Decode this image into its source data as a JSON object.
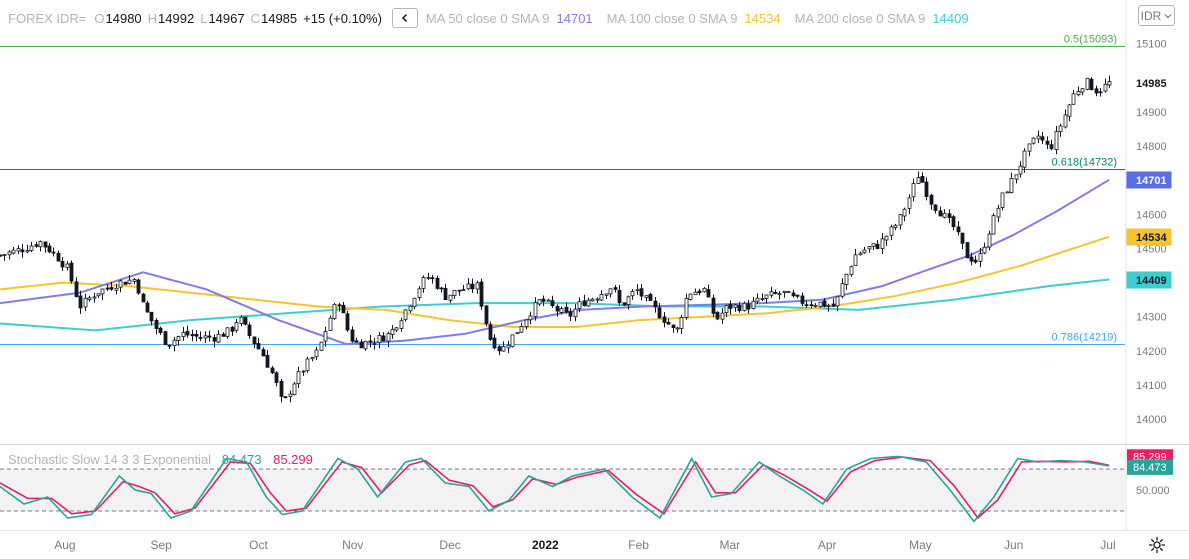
{
  "header": {
    "symbol": "FOREX IDR=",
    "ohlc": [
      {
        "label": "O",
        "value": "14980"
      },
      {
        "label": "H",
        "value": "14992"
      },
      {
        "label": "L",
        "value": "14967"
      },
      {
        "label": "C",
        "value": "14985"
      }
    ],
    "change": "+15 (+0.10%)",
    "collapse_icon": "chevron-left-icon",
    "moving_averages": [
      {
        "label": "MA 50 close 0 SMA 9",
        "value": "14701",
        "color": "#7e7ee8"
      },
      {
        "label": "MA 100 close 0 SMA 9",
        "value": "14534",
        "color": "#f5c530"
      },
      {
        "label": "MA 200 close 0 SMA 9",
        "value": "14409",
        "color": "#3dcfd0"
      }
    ]
  },
  "currency_button": {
    "label": "IDR",
    "icon": "chevron-down-icon"
  },
  "stochastic": {
    "name": "Stochastic Slow 14 3 3 Exponential",
    "k_value": "84.473",
    "d_value": "85.299",
    "k_color": "#26a69a",
    "d_color": "#e91e63",
    "scale_label": "50.000"
  },
  "settings_icon": "gear-icon",
  "chart_data": {
    "type": "candlestick",
    "price_axis": {
      "ticks": [
        14000,
        14100,
        14200,
        14300,
        14400,
        14500,
        14600,
        14700,
        14800,
        14900,
        15000,
        15100
      ],
      "range": [
        13930,
        15140
      ]
    },
    "time_axis": {
      "labels": [
        "Aug",
        "Sep",
        "Oct",
        "Nov",
        "Dec",
        "2022",
        "Feb",
        "Mar",
        "Apr",
        "May",
        "Jun",
        "Jul"
      ],
      "bold": [
        "2022"
      ]
    },
    "fib_levels": [
      {
        "label": "0.5(15093)",
        "value": 15093,
        "color": "#4caf50"
      },
      {
        "label": "0.618(14732)",
        "value": 14732,
        "color": "#00897b"
      },
      {
        "label": "0.786(14219)",
        "value": 14219,
        "color": "#42a5f5"
      }
    ],
    "price_badges": [
      {
        "label": "14985",
        "value": 14985,
        "bg": "#ffffff",
        "fg": "#131722"
      },
      {
        "label": "14701",
        "value": 14701,
        "bg": "#5b6ee1",
        "fg": "#ffffff"
      },
      {
        "label": "14534",
        "value": 14534,
        "bg": "#f5c530",
        "fg": "#131722"
      },
      {
        "label": "14409",
        "value": 14409,
        "bg": "#3dcfd0",
        "fg": "#131722"
      }
    ],
    "close_series": [
      {
        "t": 0.0,
        "v": 14480
      },
      {
        "t": 0.6,
        "v": 14500
      },
      {
        "t": 1.0,
        "v": 14520
      },
      {
        "t": 1.4,
        "v": 14480
      },
      {
        "t": 1.7,
        "v": 14440
      },
      {
        "t": 2.0,
        "v": 14330
      },
      {
        "t": 2.4,
        "v": 14370
      },
      {
        "t": 2.8,
        "v": 14390
      },
      {
        "t": 3.0,
        "v": 14400
      },
      {
        "t": 3.4,
        "v": 14410
      },
      {
        "t": 3.6,
        "v": 14330
      },
      {
        "t": 3.9,
        "v": 14270
      },
      {
        "t": 4.2,
        "v": 14220
      },
      {
        "t": 4.6,
        "v": 14250
      },
      {
        "t": 5.0,
        "v": 14240
      },
      {
        "t": 5.4,
        "v": 14240
      },
      {
        "t": 5.8,
        "v": 14260
      },
      {
        "t": 6.0,
        "v": 14300
      },
      {
        "t": 6.3,
        "v": 14240
      },
      {
        "t": 6.6,
        "v": 14190
      },
      {
        "t": 6.9,
        "v": 14120
      },
      {
        "t": 7.1,
        "v": 14040
      },
      {
        "t": 7.4,
        "v": 14110
      },
      {
        "t": 7.7,
        "v": 14160
      },
      {
        "t": 8.0,
        "v": 14200
      },
      {
        "t": 8.3,
        "v": 14300
      },
      {
        "t": 8.5,
        "v": 14350
      },
      {
        "t": 8.8,
        "v": 14240
      },
      {
        "t": 9.0,
        "v": 14220
      },
      {
        "t": 9.4,
        "v": 14230
      },
      {
        "t": 9.8,
        "v": 14250
      },
      {
        "t": 10.2,
        "v": 14320
      },
      {
        "t": 10.6,
        "v": 14400
      },
      {
        "t": 10.8,
        "v": 14420
      },
      {
        "t": 11.2,
        "v": 14360
      },
      {
        "t": 11.6,
        "v": 14380
      },
      {
        "t": 12.0,
        "v": 14390
      },
      {
        "t": 12.3,
        "v": 14240
      },
      {
        "t": 12.6,
        "v": 14200
      },
      {
        "t": 13.0,
        "v": 14260
      },
      {
        "t": 13.3,
        "v": 14310
      },
      {
        "t": 13.6,
        "v": 14350
      },
      {
        "t": 14.0,
        "v": 14320
      },
      {
        "t": 14.3,
        "v": 14300
      },
      {
        "t": 14.6,
        "v": 14340
      },
      {
        "t": 15.0,
        "v": 14360
      },
      {
        "t": 15.4,
        "v": 14390
      },
      {
        "t": 15.6,
        "v": 14330
      },
      {
        "t": 16.0,
        "v": 14380
      },
      {
        "t": 16.4,
        "v": 14330
      },
      {
        "t": 16.8,
        "v": 14280
      },
      {
        "t": 17.0,
        "v": 14250
      },
      {
        "t": 17.3,
        "v": 14370
      },
      {
        "t": 17.7,
        "v": 14380
      },
      {
        "t": 18.0,
        "v": 14290
      },
      {
        "t": 18.3,
        "v": 14330
      },
      {
        "t": 18.8,
        "v": 14330
      },
      {
        "t": 19.3,
        "v": 14360
      },
      {
        "t": 19.7,
        "v": 14370
      },
      {
        "t": 20.0,
        "v": 14350
      },
      {
        "t": 20.3,
        "v": 14340
      },
      {
        "t": 20.6,
        "v": 14340
      },
      {
        "t": 21.0,
        "v": 14330
      },
      {
        "t": 21.2,
        "v": 14400
      },
      {
        "t": 21.5,
        "v": 14480
      },
      {
        "t": 21.8,
        "v": 14500
      },
      {
        "t": 22.1,
        "v": 14510
      },
      {
        "t": 22.6,
        "v": 14580
      },
      {
        "t": 22.9,
        "v": 14660
      },
      {
        "t": 23.1,
        "v": 14720
      },
      {
        "t": 23.4,
        "v": 14640
      },
      {
        "t": 23.7,
        "v": 14600
      },
      {
        "t": 24.0,
        "v": 14560
      },
      {
        "t": 24.3,
        "v": 14480
      },
      {
        "t": 24.6,
        "v": 14460
      },
      {
        "t": 24.9,
        "v": 14560
      },
      {
        "t": 25.2,
        "v": 14650
      },
      {
        "t": 25.5,
        "v": 14710
      },
      {
        "t": 25.8,
        "v": 14780
      },
      {
        "t": 26.1,
        "v": 14830
      },
      {
        "t": 26.4,
        "v": 14790
      },
      {
        "t": 26.7,
        "v": 14870
      },
      {
        "t": 27.0,
        "v": 14950
      },
      {
        "t": 27.3,
        "v": 14990
      },
      {
        "t": 27.6,
        "v": 14960
      },
      {
        "t": 27.9,
        "v": 14985
      }
    ],
    "ma50_series": [
      {
        "t": 0.0,
        "v": 14340
      },
      {
        "t": 2.0,
        "v": 14370
      },
      {
        "t": 3.6,
        "v": 14430
      },
      {
        "t": 5.2,
        "v": 14380
      },
      {
        "t": 7.0,
        "v": 14290
      },
      {
        "t": 8.7,
        "v": 14220
      },
      {
        "t": 10.2,
        "v": 14230
      },
      {
        "t": 11.7,
        "v": 14250
      },
      {
        "t": 13.2,
        "v": 14290
      },
      {
        "t": 14.6,
        "v": 14320
      },
      {
        "t": 16.2,
        "v": 14330
      },
      {
        "t": 17.8,
        "v": 14335
      },
      {
        "t": 19.2,
        "v": 14340
      },
      {
        "t": 20.7,
        "v": 14350
      },
      {
        "t": 22.2,
        "v": 14390
      },
      {
        "t": 23.4,
        "v": 14440
      },
      {
        "t": 24.4,
        "v": 14480
      },
      {
        "t": 25.5,
        "v": 14540
      },
      {
        "t": 26.6,
        "v": 14610
      },
      {
        "t": 27.9,
        "v": 14701
      }
    ],
    "ma100_series": [
      {
        "t": 0.0,
        "v": 14380
      },
      {
        "t": 1.6,
        "v": 14400
      },
      {
        "t": 3.2,
        "v": 14390
      },
      {
        "t": 4.8,
        "v": 14370
      },
      {
        "t": 6.4,
        "v": 14350
      },
      {
        "t": 8.0,
        "v": 14330
      },
      {
        "t": 9.7,
        "v": 14320
      },
      {
        "t": 11.3,
        "v": 14290
      },
      {
        "t": 12.9,
        "v": 14270
      },
      {
        "t": 14.5,
        "v": 14270
      },
      {
        "t": 16.1,
        "v": 14290
      },
      {
        "t": 17.7,
        "v": 14300
      },
      {
        "t": 19.3,
        "v": 14310
      },
      {
        "t": 20.9,
        "v": 14330
      },
      {
        "t": 22.5,
        "v": 14360
      },
      {
        "t": 24.1,
        "v": 14400
      },
      {
        "t": 25.7,
        "v": 14450
      },
      {
        "t": 27.0,
        "v": 14500
      },
      {
        "t": 27.9,
        "v": 14534
      }
    ],
    "ma200_series": [
      {
        "t": 0.0,
        "v": 14280
      },
      {
        "t": 2.4,
        "v": 14260
      },
      {
        "t": 4.8,
        "v": 14290
      },
      {
        "t": 7.2,
        "v": 14310
      },
      {
        "t": 9.6,
        "v": 14330
      },
      {
        "t": 12.0,
        "v": 14340
      },
      {
        "t": 14.4,
        "v": 14340
      },
      {
        "t": 16.8,
        "v": 14330
      },
      {
        "t": 19.2,
        "v": 14330
      },
      {
        "t": 21.6,
        "v": 14320
      },
      {
        "t": 24.0,
        "v": 14350
      },
      {
        "t": 26.4,
        "v": 14390
      },
      {
        "t": 27.9,
        "v": 14409
      }
    ],
    "stochastic_k": [
      {
        "t": 0.0,
        "v": 55
      },
      {
        "t": 0.6,
        "v": 30
      },
      {
        "t": 1.2,
        "v": 40
      },
      {
        "t": 1.7,
        "v": 10
      },
      {
        "t": 2.3,
        "v": 15
      },
      {
        "t": 3.0,
        "v": 70
      },
      {
        "t": 3.4,
        "v": 50
      },
      {
        "t": 3.8,
        "v": 45
      },
      {
        "t": 4.3,
        "v": 10
      },
      {
        "t": 4.8,
        "v": 20
      },
      {
        "t": 5.7,
        "v": 95
      },
      {
        "t": 6.2,
        "v": 90
      },
      {
        "t": 6.7,
        "v": 40
      },
      {
        "t": 7.1,
        "v": 15
      },
      {
        "t": 7.6,
        "v": 20
      },
      {
        "t": 8.5,
        "v": 95
      },
      {
        "t": 9.0,
        "v": 80
      },
      {
        "t": 9.5,
        "v": 40
      },
      {
        "t": 10.2,
        "v": 90
      },
      {
        "t": 10.6,
        "v": 95
      },
      {
        "t": 11.2,
        "v": 60
      },
      {
        "t": 11.8,
        "v": 55
      },
      {
        "t": 12.3,
        "v": 20
      },
      {
        "t": 12.8,
        "v": 35
      },
      {
        "t": 13.3,
        "v": 70
      },
      {
        "t": 13.9,
        "v": 55
      },
      {
        "t": 14.4,
        "v": 70
      },
      {
        "t": 15.2,
        "v": 80
      },
      {
        "t": 15.9,
        "v": 40
      },
      {
        "t": 16.6,
        "v": 10
      },
      {
        "t": 17.4,
        "v": 95
      },
      {
        "t": 17.9,
        "v": 40
      },
      {
        "t": 18.4,
        "v": 45
      },
      {
        "t": 19.1,
        "v": 90
      },
      {
        "t": 19.6,
        "v": 70
      },
      {
        "t": 20.2,
        "v": 50
      },
      {
        "t": 20.7,
        "v": 30
      },
      {
        "t": 21.3,
        "v": 80
      },
      {
        "t": 21.9,
        "v": 95
      },
      {
        "t": 22.6,
        "v": 98
      },
      {
        "t": 23.3,
        "v": 90
      },
      {
        "t": 23.9,
        "v": 50
      },
      {
        "t": 24.5,
        "v": 5
      },
      {
        "t": 25.0,
        "v": 40
      },
      {
        "t": 25.6,
        "v": 95
      },
      {
        "t": 26.1,
        "v": 90
      },
      {
        "t": 26.7,
        "v": 92
      },
      {
        "t": 27.3,
        "v": 90
      },
      {
        "t": 27.9,
        "v": 84.473
      }
    ],
    "stochastic_d": [
      {
        "t": 0.0,
        "v": 60
      },
      {
        "t": 0.7,
        "v": 38
      },
      {
        "t": 1.3,
        "v": 38
      },
      {
        "t": 1.8,
        "v": 16
      },
      {
        "t": 2.4,
        "v": 20
      },
      {
        "t": 3.1,
        "v": 62
      },
      {
        "t": 3.5,
        "v": 55
      },
      {
        "t": 3.9,
        "v": 46
      },
      {
        "t": 4.4,
        "v": 16
      },
      {
        "t": 4.9,
        "v": 24
      },
      {
        "t": 5.8,
        "v": 90
      },
      {
        "t": 6.3,
        "v": 88
      },
      {
        "t": 6.8,
        "v": 46
      },
      {
        "t": 7.2,
        "v": 20
      },
      {
        "t": 7.7,
        "v": 24
      },
      {
        "t": 8.6,
        "v": 90
      },
      {
        "t": 9.1,
        "v": 82
      },
      {
        "t": 9.6,
        "v": 46
      },
      {
        "t": 10.3,
        "v": 86
      },
      {
        "t": 10.7,
        "v": 92
      },
      {
        "t": 11.3,
        "v": 64
      },
      {
        "t": 11.9,
        "v": 56
      },
      {
        "t": 12.4,
        "v": 26
      },
      {
        "t": 12.9,
        "v": 36
      },
      {
        "t": 13.4,
        "v": 66
      },
      {
        "t": 14.0,
        "v": 58
      },
      {
        "t": 14.5,
        "v": 68
      },
      {
        "t": 15.3,
        "v": 78
      },
      {
        "t": 16.0,
        "v": 44
      },
      {
        "t": 16.7,
        "v": 16
      },
      {
        "t": 17.5,
        "v": 90
      },
      {
        "t": 18.0,
        "v": 46
      },
      {
        "t": 18.5,
        "v": 46
      },
      {
        "t": 19.2,
        "v": 86
      },
      {
        "t": 19.7,
        "v": 72
      },
      {
        "t": 20.3,
        "v": 52
      },
      {
        "t": 20.8,
        "v": 34
      },
      {
        "t": 21.4,
        "v": 76
      },
      {
        "t": 22.0,
        "v": 92
      },
      {
        "t": 22.7,
        "v": 97
      },
      {
        "t": 23.4,
        "v": 92
      },
      {
        "t": 24.0,
        "v": 56
      },
      {
        "t": 24.6,
        "v": 10
      },
      {
        "t": 25.1,
        "v": 36
      },
      {
        "t": 25.7,
        "v": 90
      },
      {
        "t": 26.2,
        "v": 91
      },
      {
        "t": 26.8,
        "v": 90
      },
      {
        "t": 27.4,
        "v": 91
      },
      {
        "t": 27.9,
        "v": 85.299
      }
    ]
  }
}
